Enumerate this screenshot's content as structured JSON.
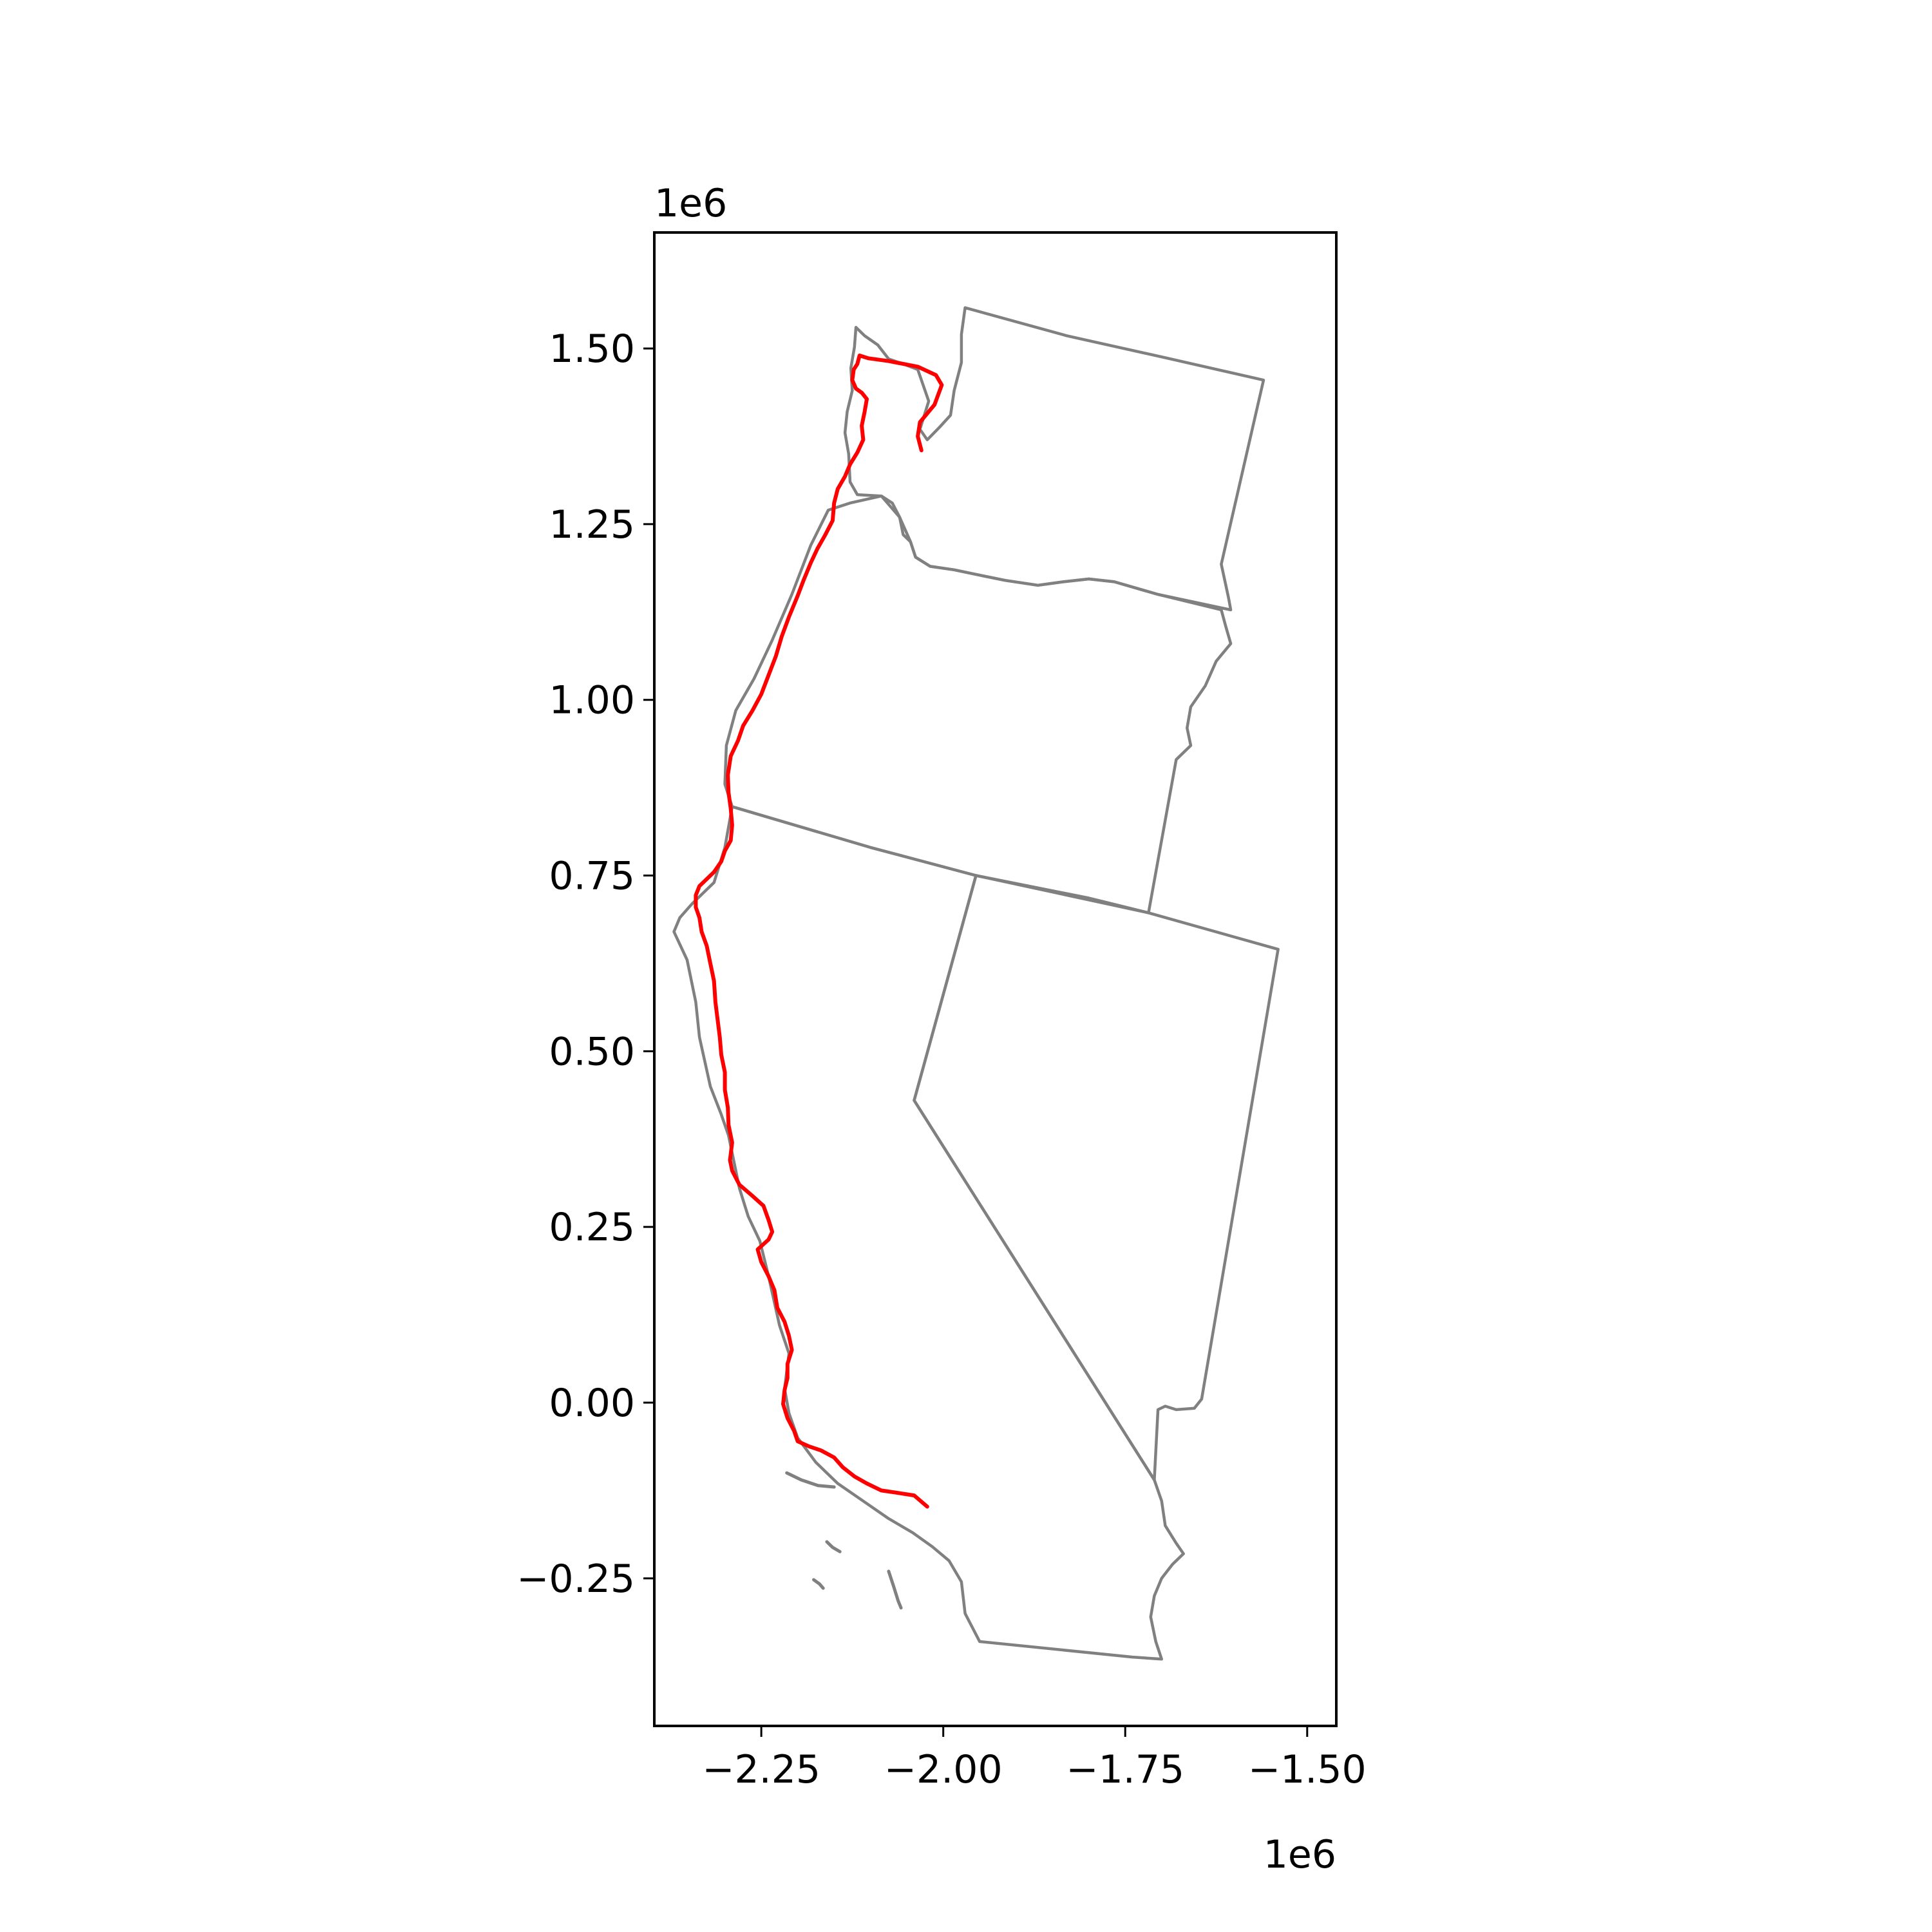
{
  "colors": {
    "state_outline": "#808080",
    "route": "#ff0000",
    "axes": "#000000",
    "background": "#ffffff"
  },
  "chart_data": {
    "type": "map",
    "xlim": [
      -2397000,
      -1460000
    ],
    "ylim": [
      -460000,
      1665000
    ],
    "x_ticks": [
      {
        "value": -2250000,
        "label": "−2.25"
      },
      {
        "value": -2000000,
        "label": "−2.00"
      },
      {
        "value": -1750000,
        "label": "−1.75"
      },
      {
        "value": -1500000,
        "label": "−1.50"
      }
    ],
    "y_ticks": [
      {
        "value": 1500000,
        "label": "1.50"
      },
      {
        "value": 1250000,
        "label": "1.25"
      },
      {
        "value": 1000000,
        "label": "1.00"
      },
      {
        "value": 750000,
        "label": "0.75"
      },
      {
        "value": 500000,
        "label": "0.50"
      },
      {
        "value": 250000,
        "label": "0.25"
      },
      {
        "value": 0,
        "label": "0.00"
      },
      {
        "value": -250000,
        "label": "−0.25"
      }
    ],
    "x_offset_label": "1e6",
    "y_offset_label": "1e6",
    "states": [
      {
        "name": "Washington",
        "points": [
          [
            -1970000,
            1558000
          ],
          [
            -1830000,
            1518000
          ],
          [
            -1700000,
            1488000
          ],
          [
            -1560000,
            1455000
          ],
          [
            -1618000,
            1193000
          ],
          [
            -1608000,
            1145000
          ],
          [
            -1605000,
            1128000
          ],
          [
            -1705000,
            1150000
          ],
          [
            -1765000,
            1168000
          ],
          [
            -1800000,
            1172000
          ],
          [
            -1835000,
            1168000
          ],
          [
            -1870000,
            1163000
          ],
          [
            -1915000,
            1170000
          ],
          [
            -1948000,
            1177000
          ],
          [
            -1985000,
            1185000
          ],
          [
            -2018000,
            1190000
          ],
          [
            -2038000,
            1203000
          ],
          [
            -2045000,
            1225000
          ],
          [
            -2055000,
            1235000
          ],
          [
            -2060000,
            1260000
          ],
          [
            -2070000,
            1280000
          ],
          [
            -2085000,
            1290000
          ],
          [
            -2118000,
            1292000
          ],
          [
            -2128000,
            1310000
          ],
          [
            -2130000,
            1350000
          ],
          [
            -2135000,
            1380000
          ],
          [
            -2132000,
            1410000
          ],
          [
            -2125000,
            1440000
          ],
          [
            -2127000,
            1472000
          ],
          [
            -2122000,
            1502000
          ],
          [
            -2120000,
            1530000
          ],
          [
            -2108000,
            1518000
          ],
          [
            -2090000,
            1505000
          ],
          [
            -2075000,
            1485000
          ],
          [
            -2055000,
            1478000
          ],
          [
            -2035000,
            1470000
          ],
          [
            -2020000,
            1425000
          ],
          [
            -2032000,
            1385000
          ],
          [
            -2022000,
            1370000
          ],
          [
            -2005000,
            1388000
          ],
          [
            -1990000,
            1405000
          ],
          [
            -1985000,
            1440000
          ],
          [
            -1975000,
            1480000
          ],
          [
            -1975000,
            1520000
          ],
          [
            -1970000,
            1558000
          ]
        ]
      },
      {
        "name": "Oregon",
        "points": [
          [
            -2128000,
            1280000
          ],
          [
            -2085000,
            1290000
          ],
          [
            -2060000,
            1260000
          ],
          [
            -2045000,
            1225000
          ],
          [
            -2038000,
            1203000
          ],
          [
            -2018000,
            1190000
          ],
          [
            -1985000,
            1185000
          ],
          [
            -1948000,
            1177000
          ],
          [
            -1915000,
            1170000
          ],
          [
            -1870000,
            1163000
          ],
          [
            -1835000,
            1168000
          ],
          [
            -1800000,
            1172000
          ],
          [
            -1765000,
            1168000
          ],
          [
            -1705000,
            1150000
          ],
          [
            -1618000,
            1128000
          ],
          [
            -1612000,
            1105000
          ],
          [
            -1605000,
            1080000
          ],
          [
            -1625000,
            1055000
          ],
          [
            -1640000,
            1020000
          ],
          [
            -1660000,
            990000
          ],
          [
            -1665000,
            960000
          ],
          [
            -1660000,
            935000
          ],
          [
            -1680000,
            915000
          ],
          [
            -1718000,
            697000
          ],
          [
            -1800000,
            718000
          ],
          [
            -1955000,
            750000
          ],
          [
            -2100000,
            790000
          ],
          [
            -2290000,
            848000
          ],
          [
            -2300000,
            880000
          ],
          [
            -2298000,
            935000
          ],
          [
            -2285000,
            985000
          ],
          [
            -2260000,
            1030000
          ],
          [
            -2235000,
            1085000
          ],
          [
            -2208000,
            1150000
          ],
          [
            -2182000,
            1220000
          ],
          [
            -2158000,
            1270000
          ],
          [
            -2128000,
            1280000
          ]
        ]
      },
      {
        "name": "California",
        "points": [
          [
            -2290000,
            848000
          ],
          [
            -2100000,
            790000
          ],
          [
            -1955000,
            750000
          ],
          [
            -2040000,
            430000
          ],
          [
            -1710000,
            -110000
          ],
          [
            -1700000,
            -140000
          ],
          [
            -1695000,
            -175000
          ],
          [
            -1680000,
            -200000
          ],
          [
            -1670000,
            -215000
          ],
          [
            -1685000,
            -230000
          ],
          [
            -1700000,
            -250000
          ],
          [
            -1710000,
            -275000
          ],
          [
            -1715000,
            -305000
          ],
          [
            -1708000,
            -340000
          ],
          [
            -1700000,
            -365000
          ],
          [
            -1740000,
            -362000
          ],
          [
            -1950000,
            -340000
          ],
          [
            -1970000,
            -300000
          ],
          [
            -1975000,
            -255000
          ],
          [
            -1992000,
            -225000
          ],
          [
            -2015000,
            -205000
          ],
          [
            -2042000,
            -185000
          ],
          [
            -2075000,
            -165000
          ],
          [
            -2110000,
            -140000
          ],
          [
            -2145000,
            -115000
          ],
          [
            -2175000,
            -85000
          ],
          [
            -2200000,
            -50000
          ],
          [
            -2212000,
            -15000
          ],
          [
            -2218000,
            20000
          ],
          [
            -2212000,
            70000
          ],
          [
            -2225000,
            110000
          ],
          [
            -2240000,
            180000
          ],
          [
            -2252000,
            230000
          ],
          [
            -2268000,
            265000
          ],
          [
            -2280000,
            305000
          ],
          [
            -2288000,
            345000
          ],
          [
            -2295000,
            380000
          ],
          [
            -2305000,
            410000
          ],
          [
            -2320000,
            450000
          ],
          [
            -2335000,
            520000
          ],
          [
            -2340000,
            570000
          ],
          [
            -2352000,
            630000
          ],
          [
            -2370000,
            670000
          ],
          [
            -2362000,
            690000
          ],
          [
            -2345000,
            710000
          ],
          [
            -2315000,
            740000
          ],
          [
            -2300000,
            790000
          ],
          [
            -2290000,
            848000
          ]
        ]
      },
      {
        "name": "Nevada",
        "points": [
          [
            -1955000,
            750000
          ],
          [
            -1718000,
            697000
          ],
          [
            -1540000,
            645000
          ],
          [
            -1645000,
            5000
          ],
          [
            -1655000,
            -8000
          ],
          [
            -1680000,
            -10000
          ],
          [
            -1695000,
            -5000
          ],
          [
            -1705000,
            -10000
          ],
          [
            -1710000,
            -110000
          ],
          [
            -2040000,
            430000
          ],
          [
            -1955000,
            750000
          ]
        ]
      }
    ],
    "islands": [
      [
        [
          -2215000,
          -100000
        ],
        [
          -2195000,
          -110000
        ],
        [
          -2172000,
          -118000
        ],
        [
          -2150000,
          -120000
        ]
      ],
      [
        [
          -2160000,
          -198000
        ],
        [
          -2152000,
          -206000
        ],
        [
          -2142000,
          -212000
        ]
      ],
      [
        [
          -2075000,
          -240000
        ],
        [
          -2068000,
          -262000
        ],
        [
          -2062000,
          -282000
        ],
        [
          -2058000,
          -292000
        ]
      ],
      [
        [
          -2178000,
          -252000
        ],
        [
          -2170000,
          -258000
        ],
        [
          -2165000,
          -264000
        ]
      ]
    ],
    "route": [
      [
        -2030000,
        1355000
      ],
      [
        -2035000,
        1375000
      ],
      [
        -2032000,
        1395000
      ],
      [
        -2012000,
        1420000
      ],
      [
        -2002000,
        1448000
      ],
      [
        -2010000,
        1462000
      ],
      [
        -2035000,
        1474000
      ],
      [
        -2075000,
        1482000
      ],
      [
        -2103000,
        1486000
      ],
      [
        -2115000,
        1490000
      ],
      [
        -2118000,
        1478000
      ],
      [
        -2123000,
        1470000
      ],
      [
        -2125000,
        1455000
      ],
      [
        -2120000,
        1443000
      ],
      [
        -2112000,
        1437000
      ],
      [
        -2105000,
        1428000
      ],
      [
        -2108000,
        1410000
      ],
      [
        -2112000,
        1390000
      ],
      [
        -2110000,
        1370000
      ],
      [
        -2118000,
        1352000
      ],
      [
        -2128000,
        1335000
      ],
      [
        -2135000,
        1318000
      ],
      [
        -2145000,
        1300000
      ],
      [
        -2150000,
        1280000
      ],
      [
        -2152000,
        1255000
      ],
      [
        -2162000,
        1235000
      ],
      [
        -2173000,
        1215000
      ],
      [
        -2182000,
        1195000
      ],
      [
        -2192000,
        1170000
      ],
      [
        -2200000,
        1148000
      ],
      [
        -2212000,
        1118000
      ],
      [
        -2222000,
        1090000
      ],
      [
        -2230000,
        1062000
      ],
      [
        -2240000,
        1035000
      ],
      [
        -2250000,
        1008000
      ],
      [
        -2262000,
        985000
      ],
      [
        -2275000,
        963000
      ],
      [
        -2282000,
        942000
      ],
      [
        -2292000,
        920000
      ],
      [
        -2296000,
        893000
      ],
      [
        -2295000,
        868000
      ],
      [
        -2292000,
        845000
      ],
      [
        -2290000,
        822000
      ],
      [
        -2292000,
        800000
      ],
      [
        -2300000,
        785000
      ],
      [
        -2305000,
        770000
      ],
      [
        -2315000,
        755000
      ],
      [
        -2325000,
        745000
      ],
      [
        -2335000,
        735000
      ],
      [
        -2340000,
        722000
      ],
      [
        -2340000,
        705000
      ],
      [
        -2335000,
        690000
      ],
      [
        -2332000,
        670000
      ],
      [
        -2325000,
        650000
      ],
      [
        -2320000,
        625000
      ],
      [
        -2315000,
        600000
      ],
      [
        -2313000,
        570000
      ],
      [
        -2310000,
        545000
      ],
      [
        -2307000,
        520000
      ],
      [
        -2305000,
        495000
      ],
      [
        -2300000,
        470000
      ],
      [
        -2300000,
        445000
      ],
      [
        -2296000,
        420000
      ],
      [
        -2295000,
        395000
      ],
      [
        -2290000,
        370000
      ],
      [
        -2293000,
        345000
      ],
      [
        -2290000,
        330000
      ],
      [
        -2280000,
        310000
      ],
      [
        -2263000,
        295000
      ],
      [
        -2247000,
        280000
      ],
      [
        -2240000,
        260000
      ],
      [
        -2235000,
        243000
      ],
      [
        -2240000,
        232000
      ],
      [
        -2255000,
        218000
      ],
      [
        -2250000,
        200000
      ],
      [
        -2240000,
        180000
      ],
      [
        -2232000,
        160000
      ],
      [
        -2228000,
        135000
      ],
      [
        -2218000,
        115000
      ],
      [
        -2212000,
        95000
      ],
      [
        -2208000,
        75000
      ],
      [
        -2214000,
        55000
      ],
      [
        -2214000,
        35000
      ],
      [
        -2218000,
        18000
      ],
      [
        -2220000,
        -2000
      ],
      [
        -2214000,
        -22000
      ],
      [
        -2205000,
        -40000
      ],
      [
        -2200000,
        -55000
      ],
      [
        -2185000,
        -62000
      ],
      [
        -2168000,
        -68000
      ],
      [
        -2150000,
        -78000
      ],
      [
        -2138000,
        -92000
      ],
      [
        -2122000,
        -105000
      ],
      [
        -2105000,
        -115000
      ],
      [
        -2085000,
        -125000
      ],
      [
        -2065000,
        -128000
      ],
      [
        -2040000,
        -132000
      ],
      [
        -2022000,
        -148000
      ]
    ]
  }
}
